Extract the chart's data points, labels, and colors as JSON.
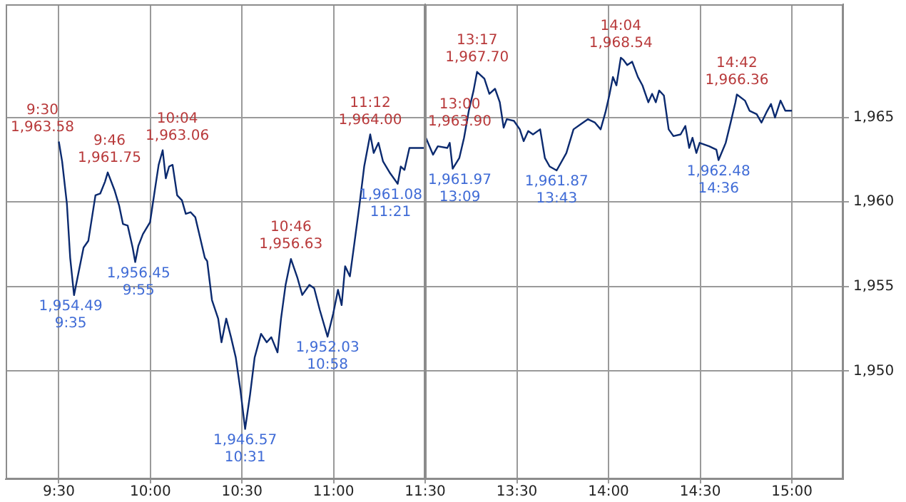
{
  "chart_data": [
    {
      "type": "line",
      "x": [
        9.5,
        9.518,
        9.544,
        9.562,
        9.583,
        9.609,
        9.635,
        9.661,
        9.687,
        9.7,
        9.726,
        9.752,
        9.767,
        9.804,
        9.829,
        9.85,
        9.876,
        9.903,
        9.917,
        9.934,
        9.959,
        9.998,
        10.024,
        10.045,
        10.067,
        10.084,
        10.102,
        10.121,
        10.146,
        10.172,
        10.193,
        10.219,
        10.245,
        10.271,
        10.297,
        10.31,
        10.336,
        10.37,
        10.388,
        10.414,
        10.44,
        10.466,
        10.491,
        10.517,
        10.544,
        10.569,
        10.604,
        10.635,
        10.66,
        10.694,
        10.713,
        10.738,
        10.767,
        10.803,
        10.829,
        10.868,
        10.894,
        10.925,
        10.967,
        10.998,
        11.024,
        11.044,
        11.063,
        11.089,
        11.114,
        11.141,
        11.167,
        11.2,
        11.219,
        11.245,
        11.27,
        11.309,
        11.35,
        11.367,
        11.387,
        11.414,
        11.5
      ],
      "series": [
        {
          "color": "#0b2a6f",
          "values": [
            1963.58,
            1962.4,
            1959.9,
            1956.7,
            1954.49,
            1955.9,
            1957.3,
            1957.7,
            1959.5,
            1960.4,
            1960.5,
            1961.2,
            1961.75,
            1960.7,
            1959.8,
            1958.7,
            1958.6,
            1957.3,
            1956.45,
            1957.4,
            1958.1,
            1958.8,
            1960.7,
            1962.2,
            1963.06,
            1961.4,
            1962.1,
            1962.2,
            1960.4,
            1960.1,
            1959.3,
            1959.4,
            1959.1,
            1957.9,
            1956.7,
            1956.5,
            1954.2,
            1953.1,
            1951.7,
            1953.1,
            1952.0,
            1950.8,
            1948.9,
            1946.57,
            1948.6,
            1950.8,
            1952.2,
            1951.7,
            1952.0,
            1951.1,
            1953.1,
            1955.1,
            1956.63,
            1955.5,
            1954.5,
            1955.1,
            1954.9,
            1953.6,
            1952.03,
            1953.4,
            1954.8,
            1953.9,
            1956.2,
            1955.6,
            1957.6,
            1959.8,
            1962.1,
            1964.0,
            1962.9,
            1963.5,
            1962.4,
            1961.7,
            1961.08,
            1962.1,
            1961.9,
            1963.2,
            1963.2
          ]
        }
      ],
      "xlim": [
        9.21,
        11.5
      ],
      "xticks": [
        {
          "value": 9.5,
          "label": "9:30"
        },
        {
          "value": 10,
          "label": "10:00"
        },
        {
          "value": 10.5,
          "label": "10:30"
        },
        {
          "value": 11,
          "label": "11:00"
        },
        {
          "value": 11.5,
          "label": "11:30"
        }
      ],
      "ylim": [
        1943.6,
        1971.7
      ],
      "yticks": [
        1950,
        1955,
        1960,
        1965
      ],
      "grid": true,
      "tick_labels": "x",
      "annotations": [
        {
          "text": "9:30\n1,963.58",
          "x": 9.5,
          "y": 1963.58
        },
        {
          "text": "1,954.49\n9:35",
          "x": 9.583,
          "y": 1954.49
        },
        {
          "text": "9:46\n1,961.75",
          "x": 9.767,
          "y": 1961.75
        },
        {
          "text": "1,956.45\n9:55",
          "x": 9.917,
          "y": 1956.45
        },
        {
          "text": "10:04\n1,963.06",
          "x": 10.067,
          "y": 1963.06
        },
        {
          "text": "1,946.57\n10:31",
          "x": 10.517,
          "y": 1946.57
        },
        {
          "text": "10:46\n1,956.63",
          "x": 10.767,
          "y": 1956.63
        },
        {
          "text": "1,952.03\n10:58",
          "x": 10.967,
          "y": 1952.03
        },
        {
          "text": "11:12\n1,964.00",
          "x": 11.2,
          "y": 1964.0
        },
        {
          "text": "1,961.08\n11:21",
          "x": 11.35,
          "y": 1961.08
        }
      ]
    },
    {
      "type": "line",
      "x": [
        13.0,
        13.043,
        13.069,
        13.121,
        13.134,
        13.15,
        13.186,
        13.212,
        13.238,
        13.264,
        13.283,
        13.323,
        13.35,
        13.381,
        13.407,
        13.428,
        13.445,
        13.484,
        13.516,
        13.537,
        13.562,
        13.588,
        13.627,
        13.653,
        13.679,
        13.717,
        13.77,
        13.809,
        13.848,
        13.887,
        13.926,
        13.957,
        13.983,
        14.004,
        14.024,
        14.043,
        14.067,
        14.082,
        14.102,
        14.129,
        14.16,
        14.185,
        14.217,
        14.238,
        14.258,
        14.276,
        14.302,
        14.328,
        14.354,
        14.393,
        14.419,
        14.44,
        14.458,
        14.479,
        14.497,
        14.549,
        14.588,
        14.6,
        14.639,
        14.666,
        14.692,
        14.7,
        14.744,
        14.769,
        14.808,
        14.834,
        14.861,
        14.886,
        14.908,
        14.938,
        14.964,
        15.0
      ],
      "series": [
        {
          "color": "#0b2a6f",
          "values": [
            1963.9,
            1962.8,
            1963.3,
            1963.2,
            1963.5,
            1961.97,
            1962.6,
            1963.8,
            1965.4,
            1966.6,
            1967.7,
            1967.3,
            1966.4,
            1966.7,
            1965.9,
            1964.4,
            1964.9,
            1964.8,
            1964.3,
            1963.6,
            1964.2,
            1964.0,
            1964.3,
            1962.6,
            1962.1,
            1961.87,
            1962.9,
            1964.3,
            1964.6,
            1964.9,
            1964.7,
            1964.3,
            1965.3,
            1966.3,
            1967.4,
            1966.9,
            1968.54,
            1968.4,
            1968.1,
            1968.3,
            1967.4,
            1966.9,
            1965.9,
            1966.4,
            1965.9,
            1966.6,
            1966.3,
            1964.3,
            1963.9,
            1964.0,
            1964.5,
            1963.2,
            1963.8,
            1962.9,
            1963.5,
            1963.3,
            1963.1,
            1962.48,
            1963.5,
            1964.7,
            1965.9,
            1966.36,
            1966.0,
            1965.4,
            1965.2,
            1964.7,
            1965.3,
            1965.8,
            1965.0,
            1966.0,
            1965.4,
            1965.4
          ]
        }
      ],
      "xlim": [
        13.0,
        15.28
      ],
      "xticks": [
        {
          "value": 13.5,
          "label": "13:30"
        },
        {
          "value": 14,
          "label": "14:00"
        },
        {
          "value": 14.5,
          "label": "14:30"
        },
        {
          "value": 15,
          "label": "15:00"
        }
      ],
      "ylim": [
        1943.6,
        1971.7
      ],
      "yticks": [
        {
          "value": 1950,
          "label": "1,950"
        },
        {
          "value": 1955,
          "label": "1,955"
        },
        {
          "value": 1960,
          "label": "1,960"
        },
        {
          "value": 1965,
          "label": "1,965"
        }
      ],
      "grid": true,
      "annotations": [
        {
          "text": "13:00\n1,963.90",
          "x": 13.0,
          "y": 1963.9
        },
        {
          "text": "1,961.97\n13:09",
          "x": 13.15,
          "y": 1961.97
        },
        {
          "text": "13:17\n1,967.70",
          "x": 13.283,
          "y": 1967.7
        },
        {
          "text": "1,961.87\n13:43",
          "x": 13.717,
          "y": 1961.87
        },
        {
          "text": "14:04\n1,968.54",
          "x": 14.067,
          "y": 1968.54
        },
        {
          "text": "1,962.48\n14:36",
          "x": 14.6,
          "y": 1962.48
        },
        {
          "text": "14:42\n1,966.36",
          "x": 14.7,
          "y": 1966.36
        }
      ]
    }
  ]
}
